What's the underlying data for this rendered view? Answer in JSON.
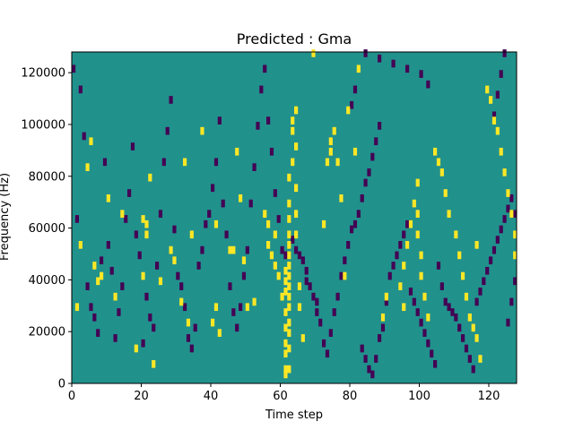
{
  "chart_data": {
    "type": "heatmap",
    "title": "Predicted : Gma",
    "xlabel": "Time step",
    "ylabel": "Frequency (Hz)",
    "xlim": [
      0,
      128
    ],
    "ylim": [
      0,
      128000
    ],
    "x_ticks": [
      0,
      20,
      40,
      60,
      80,
      100,
      120
    ],
    "y_ticks": [
      0,
      20000,
      40000,
      60000,
      80000,
      100000,
      120000
    ],
    "n_time_steps": 128,
    "n_freq_bins": 128,
    "value_levels": [
      0,
      1,
      2
    ],
    "colors": {
      "low": "#440154",
      "mid": "#21918c",
      "high": "#fde725"
    },
    "background_level": 1,
    "cells_high": [
      [
        1,
        28000
      ],
      [
        2,
        52000
      ],
      [
        4,
        82000
      ],
      [
        5,
        92000
      ],
      [
        6,
        44000
      ],
      [
        7,
        38000
      ],
      [
        8,
        40000
      ],
      [
        10,
        70000
      ],
      [
        12,
        32000
      ],
      [
        14,
        64000
      ],
      [
        18,
        12000
      ],
      [
        20,
        40000
      ],
      [
        20,
        62000
      ],
      [
        21,
        60000
      ],
      [
        21,
        56000
      ],
      [
        22,
        78000
      ],
      [
        23,
        6000
      ],
      [
        25,
        38000
      ],
      [
        28,
        50000
      ],
      [
        29,
        46000
      ],
      [
        31,
        30000
      ],
      [
        32,
        84000
      ],
      [
        33,
        22000
      ],
      [
        34,
        56000
      ],
      [
        37,
        96000
      ],
      [
        40,
        22000
      ],
      [
        41,
        60000
      ],
      [
        41,
        28000
      ],
      [
        42,
        18000
      ],
      [
        45,
        50000
      ],
      [
        46,
        50000
      ],
      [
        47,
        88000
      ],
      [
        48,
        70000
      ],
      [
        49,
        46000
      ],
      [
        50,
        28000
      ],
      [
        52,
        30000
      ],
      [
        55,
        64000
      ],
      [
        56,
        52000
      ],
      [
        56,
        60000
      ],
      [
        57,
        48000
      ],
      [
        58,
        56000
      ],
      [
        58,
        44000
      ],
      [
        59,
        40000
      ],
      [
        60,
        32000
      ],
      [
        61,
        2000
      ],
      [
        61,
        4000
      ],
      [
        61,
        10000
      ],
      [
        61,
        14000
      ],
      [
        61,
        20000
      ],
      [
        61,
        26000
      ],
      [
        61,
        34000
      ],
      [
        61,
        38000
      ],
      [
        61,
        42000
      ],
      [
        62,
        4000
      ],
      [
        62,
        12000
      ],
      [
        62,
        18000
      ],
      [
        62,
        22000
      ],
      [
        62,
        28000
      ],
      [
        62,
        32000
      ],
      [
        62,
        36000
      ],
      [
        62,
        40000
      ],
      [
        62,
        44000
      ],
      [
        62,
        48000
      ],
      [
        62,
        52000
      ],
      [
        62,
        56000
      ],
      [
        62,
        62000
      ],
      [
        62,
        68000
      ],
      [
        62,
        78000
      ],
      [
        63,
        84000
      ],
      [
        63,
        96000
      ],
      [
        63,
        100000
      ],
      [
        64,
        104000
      ],
      [
        64,
        90000
      ],
      [
        64,
        74000
      ],
      [
        64,
        64000
      ],
      [
        64,
        56000
      ],
      [
        65,
        36000
      ],
      [
        65,
        28000
      ],
      [
        66,
        16000
      ],
      [
        69,
        126000
      ],
      [
        72,
        60000
      ],
      [
        73,
        84000
      ],
      [
        74,
        88000
      ],
      [
        74,
        92000
      ],
      [
        75,
        96000
      ],
      [
        76,
        84000
      ],
      [
        77,
        70000
      ],
      [
        78,
        40000
      ],
      [
        79,
        104000
      ],
      [
        81,
        88000
      ],
      [
        82,
        120000
      ],
      [
        89,
        24000
      ],
      [
        90,
        32000
      ],
      [
        94,
        36000
      ],
      [
        95,
        28000
      ],
      [
        95,
        44000
      ],
      [
        96,
        52000
      ],
      [
        97,
        60000
      ],
      [
        98,
        68000
      ],
      [
        99,
        76000
      ],
      [
        99,
        64000
      ],
      [
        99,
        56000
      ],
      [
        100,
        48000
      ],
      [
        100,
        40000
      ],
      [
        101,
        32000
      ],
      [
        102,
        24000
      ],
      [
        104,
        88000
      ],
      [
        105,
        84000
      ],
      [
        106,
        80000
      ],
      [
        107,
        72000
      ],
      [
        108,
        64000
      ],
      [
        110,
        56000
      ],
      [
        111,
        48000
      ],
      [
        112,
        40000
      ],
      [
        113,
        32000
      ],
      [
        114,
        24000
      ],
      [
        115,
        20000
      ],
      [
        116,
        16000
      ],
      [
        117,
        8000
      ],
      [
        119,
        112000
      ],
      [
        120,
        108000
      ],
      [
        121,
        100000
      ],
      [
        122,
        96000
      ],
      [
        123,
        88000
      ],
      [
        124,
        80000
      ],
      [
        125,
        72000
      ],
      [
        126,
        64000
      ],
      [
        127,
        56000
      ],
      [
        127,
        48000
      ],
      [
        116,
        52000
      ]
    ],
    "cells_low": [
      [
        0,
        120000
      ],
      [
        1,
        62000
      ],
      [
        2,
        112000
      ],
      [
        3,
        94000
      ],
      [
        4,
        36000
      ],
      [
        5,
        28000
      ],
      [
        6,
        24000
      ],
      [
        7,
        18000
      ],
      [
        8,
        46000
      ],
      [
        9,
        84000
      ],
      [
        10,
        52000
      ],
      [
        11,
        42000
      ],
      [
        12,
        16000
      ],
      [
        13,
        26000
      ],
      [
        14,
        36000
      ],
      [
        15,
        62000
      ],
      [
        16,
        72000
      ],
      [
        17,
        90000
      ],
      [
        18,
        56000
      ],
      [
        19,
        48000
      ],
      [
        20,
        14000
      ],
      [
        21,
        32000
      ],
      [
        22,
        24000
      ],
      [
        23,
        20000
      ],
      [
        24,
        44000
      ],
      [
        25,
        64000
      ],
      [
        26,
        84000
      ],
      [
        27,
        96000
      ],
      [
        28,
        108000
      ],
      [
        29,
        58000
      ],
      [
        30,
        40000
      ],
      [
        31,
        36000
      ],
      [
        32,
        28000
      ],
      [
        33,
        16000
      ],
      [
        34,
        12000
      ],
      [
        35,
        20000
      ],
      [
        36,
        44000
      ],
      [
        37,
        50000
      ],
      [
        38,
        60000
      ],
      [
        39,
        64000
      ],
      [
        40,
        74000
      ],
      [
        41,
        84000
      ],
      [
        42,
        100000
      ],
      [
        43,
        68000
      ],
      [
        44,
        56000
      ],
      [
        45,
        36000
      ],
      [
        46,
        26000
      ],
      [
        47,
        20000
      ],
      [
        48,
        28000
      ],
      [
        49,
        40000
      ],
      [
        50,
        50000
      ],
      [
        51,
        68000
      ],
      [
        52,
        82000
      ],
      [
        53,
        98000
      ],
      [
        54,
        112000
      ],
      [
        55,
        120000
      ],
      [
        56,
        100000
      ],
      [
        57,
        88000
      ],
      [
        58,
        72000
      ],
      [
        59,
        62000
      ],
      [
        60,
        50000
      ],
      [
        61,
        48000
      ],
      [
        63,
        54000
      ],
      [
        64,
        50000
      ],
      [
        65,
        48000
      ],
      [
        66,
        46000
      ],
      [
        67,
        42000
      ],
      [
        67,
        38000
      ],
      [
        68,
        36000
      ],
      [
        69,
        32000
      ],
      [
        70,
        30000
      ],
      [
        70,
        26000
      ],
      [
        71,
        22000
      ],
      [
        72,
        14000
      ],
      [
        73,
        10000
      ],
      [
        74,
        18000
      ],
      [
        75,
        26000
      ],
      [
        76,
        32000
      ],
      [
        77,
        40000
      ],
      [
        78,
        46000
      ],
      [
        79,
        52000
      ],
      [
        80,
        58000
      ],
      [
        81,
        60000
      ],
      [
        82,
        64000
      ],
      [
        83,
        70000
      ],
      [
        84,
        76000
      ],
      [
        85,
        80000
      ],
      [
        86,
        86000
      ],
      [
        87,
        92000
      ],
      [
        88,
        98000
      ],
      [
        80,
        106000
      ],
      [
        81,
        112000
      ],
      [
        83,
        12000
      ],
      [
        84,
        8000
      ],
      [
        85,
        4000
      ],
      [
        86,
        2000
      ],
      [
        87,
        8000
      ],
      [
        88,
        16000
      ],
      [
        89,
        20000
      ],
      [
        90,
        30000
      ],
      [
        91,
        40000
      ],
      [
        92,
        44000
      ],
      [
        93,
        48000
      ],
      [
        94,
        52000
      ],
      [
        95,
        56000
      ],
      [
        96,
        60000
      ],
      [
        97,
        34000
      ],
      [
        98,
        30000
      ],
      [
        99,
        26000
      ],
      [
        100,
        22000
      ],
      [
        101,
        18000
      ],
      [
        102,
        14000
      ],
      [
        103,
        10000
      ],
      [
        104,
        6000
      ],
      [
        105,
        44000
      ],
      [
        106,
        36000
      ],
      [
        107,
        30000
      ],
      [
        108,
        28000
      ],
      [
        109,
        26000
      ],
      [
        110,
        24000
      ],
      [
        111,
        20000
      ],
      [
        112,
        16000
      ],
      [
        113,
        12000
      ],
      [
        114,
        8000
      ],
      [
        115,
        4000
      ],
      [
        116,
        30000
      ],
      [
        117,
        34000
      ],
      [
        118,
        38000
      ],
      [
        119,
        42000
      ],
      [
        120,
        46000
      ],
      [
        121,
        50000
      ],
      [
        122,
        54000
      ],
      [
        123,
        58000
      ],
      [
        124,
        62000
      ],
      [
        125,
        66000
      ],
      [
        126,
        70000
      ],
      [
        127,
        64000
      ],
      [
        127,
        38000
      ],
      [
        126,
        30000
      ],
      [
        125,
        22000
      ],
      [
        124,
        126000
      ],
      [
        123,
        118000
      ],
      [
        122,
        110000
      ],
      [
        121,
        102000
      ],
      [
        102,
        114000
      ],
      [
        100,
        118000
      ],
      [
        96,
        120000
      ],
      [
        92,
        122000
      ],
      [
        88,
        124000
      ],
      [
        84,
        126000
      ]
    ]
  }
}
